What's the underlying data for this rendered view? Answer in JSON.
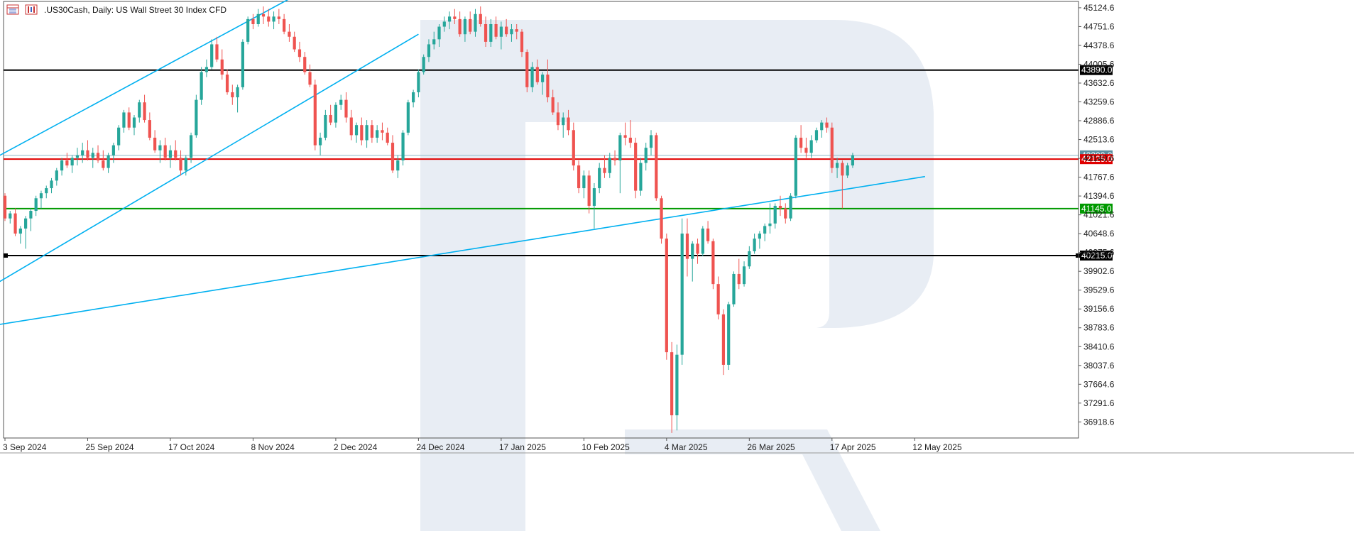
{
  "header": {
    "symbol_title": ".US30Cash, Daily:  US Wall Street 30 Index CFD",
    "icons": [
      "table-icon",
      "chart-settings-icon"
    ]
  },
  "colors": {
    "bull": "#26a69a",
    "bear": "#ef5350",
    "trend": "#00b0f0",
    "resistance": "#000000",
    "red_level": "#e00000",
    "green_level": "#009900",
    "watermark": "#e8edf4"
  },
  "chart_data": {
    "type": "candlestick",
    "title": ".US30Cash, Daily:  US Wall Street 30 Index CFD",
    "ylim": [
      36600,
      45250
    ],
    "y_ticks": [
      45124.6,
      44751.6,
      44378.6,
      44005.6,
      43632.6,
      43259.6,
      42886.6,
      42513.6,
      42140.6,
      41767.6,
      41394.6,
      41021.6,
      40648.6,
      40275.6,
      39902.6,
      39529.6,
      39156.6,
      38783.6,
      38410.6,
      38037.6,
      37664.6,
      37291.6,
      36918.6
    ],
    "x_labels": [
      {
        "label": "3 Sep 2024",
        "index": 0
      },
      {
        "label": "25 Sep 2024",
        "index": 16
      },
      {
        "label": "17 Oct 2024",
        "index": 32
      },
      {
        "label": "8 Nov 2024",
        "index": 48
      },
      {
        "label": "2 Dec 2024",
        "index": 64
      },
      {
        "label": "24 Dec 2024",
        "index": 80
      },
      {
        "label": "17 Jan 2025",
        "index": 96
      },
      {
        "label": "10 Feb 2025",
        "index": 112
      },
      {
        "label": "4 Mar 2025",
        "index": 128
      },
      {
        "label": "26 Mar 2025",
        "index": 144
      },
      {
        "label": "17 Apr 2025",
        "index": 160
      },
      {
        "label": "12 May 2025",
        "index": 176
      }
    ],
    "levels": [
      {
        "name": "resistance",
        "value": 43890.0,
        "label": "43890.0",
        "color": "#000000",
        "tag_bg": "#000000",
        "tag_fg": "#ffffff"
      },
      {
        "name": "current",
        "value": 42125.0,
        "label": "42125.0",
        "color": "#e00000",
        "tag_bg": "#e00000",
        "tag_fg": "#ffffff"
      },
      {
        "name": "support",
        "value": 41145.0,
        "label": "41145.0",
        "color": "#009900",
        "tag_bg": "#009900",
        "tag_fg": "#ffffff"
      },
      {
        "name": "lower",
        "value": 40215.0,
        "label": "40215.0",
        "color": "#000000",
        "tag_bg": "#000000",
        "tag_fg": "#ffffff"
      }
    ],
    "faint_levels": [
      {
        "value": 42200.0,
        "label": "42200.0",
        "color": "#8fb8c8"
      }
    ],
    "trendlines": [
      {
        "from": [
          -1,
          42200
        ],
        "to": [
          55,
          45300
        ]
      },
      {
        "from": [
          -1,
          39700
        ],
        "to": [
          80,
          44600
        ]
      },
      {
        "from": [
          -1,
          38850
        ],
        "to": [
          178,
          41780
        ]
      }
    ],
    "candles": [
      [
        41400,
        41450,
        40900,
        40950
      ],
      [
        40950,
        41100,
        40850,
        41050
      ],
      [
        41050,
        41150,
        40600,
        40650
      ],
      [
        40650,
        40800,
        40450,
        40750
      ],
      [
        40750,
        41000,
        40350,
        40950
      ],
      [
        40950,
        41150,
        40700,
        41100
      ],
      [
        41100,
        41400,
        41000,
        41350
      ],
      [
        41350,
        41500,
        41150,
        41450
      ],
      [
        41450,
        41600,
        41350,
        41550
      ],
      [
        41550,
        41750,
        41450,
        41700
      ],
      [
        41700,
        41950,
        41600,
        41900
      ],
      [
        41900,
        42150,
        41800,
        42100
      ],
      [
        42100,
        42250,
        41950,
        42000
      ],
      [
        42000,
        42200,
        41850,
        42150
      ],
      [
        42150,
        42350,
        42000,
        42200
      ],
      [
        42200,
        42450,
        42050,
        42300
      ],
      [
        42300,
        42500,
        42100,
        42150
      ],
      [
        42150,
        42350,
        41950,
        42250
      ],
      [
        42250,
        42400,
        42050,
        42100
      ],
      [
        42100,
        42300,
        41900,
        41950
      ],
      [
        41950,
        42250,
        41850,
        42200
      ],
      [
        42200,
        42450,
        42050,
        42400
      ],
      [
        42400,
        42800,
        42300,
        42750
      ],
      [
        42750,
        43100,
        42650,
        43050
      ],
      [
        43050,
        43150,
        42700,
        42750
      ],
      [
        42750,
        43000,
        42600,
        42950
      ],
      [
        42950,
        43300,
        42850,
        43250
      ],
      [
        43250,
        43400,
        42850,
        42900
      ],
      [
        42900,
        43050,
        42500,
        42550
      ],
      [
        42550,
        42700,
        42250,
        42300
      ],
      [
        42300,
        42500,
        42050,
        42400
      ],
      [
        42400,
        42550,
        42100,
        42150
      ],
      [
        42150,
        42400,
        41950,
        42300
      ],
      [
        42300,
        42500,
        42100,
        42150
      ],
      [
        42150,
        42300,
        41800,
        41900
      ],
      [
        41900,
        42200,
        41800,
        42150
      ],
      [
        42150,
        42650,
        42050,
        42600
      ],
      [
        42600,
        43400,
        42550,
        43300
      ],
      [
        43300,
        43950,
        43200,
        43850
      ],
      [
        43850,
        44100,
        43750,
        43950
      ],
      [
        43950,
        44500,
        43900,
        44400
      ],
      [
        44400,
        44550,
        44050,
        44100
      ],
      [
        44100,
        44300,
        43700,
        43800
      ],
      [
        43800,
        43900,
        43400,
        43450
      ],
      [
        43450,
        43600,
        43200,
        43350
      ],
      [
        43350,
        43600,
        43050,
        43550
      ],
      [
        43550,
        44500,
        43500,
        44450
      ],
      [
        44450,
        44950,
        44400,
        44900
      ],
      [
        44900,
        45000,
        44700,
        44800
      ],
      [
        44800,
        45100,
        44750,
        45000
      ],
      [
        45000,
        45150,
        44800,
        44950
      ],
      [
        44950,
        45100,
        44750,
        44850
      ],
      [
        44850,
        45050,
        44700,
        44950
      ],
      [
        44950,
        45100,
        44800,
        44900
      ],
      [
        44900,
        45000,
        44600,
        44650
      ],
      [
        44650,
        44800,
        44450,
        44550
      ],
      [
        44550,
        44650,
        44250,
        44300
      ],
      [
        44300,
        44450,
        44050,
        44150
      ],
      [
        44150,
        44250,
        43800,
        43850
      ],
      [
        43850,
        44000,
        43550,
        43600
      ],
      [
        43600,
        43700,
        42300,
        42400
      ],
      [
        42400,
        42650,
        42200,
        42550
      ],
      [
        42550,
        43100,
        42500,
        43000
      ],
      [
        43000,
        43200,
        42800,
        42850
      ],
      [
        42850,
        43250,
        42750,
        43200
      ],
      [
        43200,
        43400,
        43100,
        43300
      ],
      [
        43300,
        43450,
        42850,
        42950
      ],
      [
        42950,
        43100,
        42500,
        42600
      ],
      [
        42600,
        42850,
        42450,
        42800
      ],
      [
        42800,
        42950,
        42400,
        42500
      ],
      [
        42500,
        42900,
        42350,
        42800
      ],
      [
        42800,
        42900,
        42450,
        42550
      ],
      [
        42550,
        42800,
        42450,
        42700
      ],
      [
        42700,
        42850,
        42500,
        42650
      ],
      [
        42650,
        42750,
        42400,
        42450
      ],
      [
        42450,
        42600,
        41850,
        41900
      ],
      [
        41900,
        42200,
        41750,
        42100
      ],
      [
        42100,
        42700,
        42000,
        42650
      ],
      [
        42650,
        43300,
        42600,
        43250
      ],
      [
        43250,
        43500,
        43150,
        43450
      ],
      [
        43450,
        43900,
        43350,
        43850
      ],
      [
        43850,
        44200,
        43800,
        44150
      ],
      [
        44150,
        44500,
        44050,
        44400
      ],
      [
        44400,
        44650,
        44300,
        44500
      ],
      [
        44500,
        44800,
        44350,
        44750
      ],
      [
        44750,
        44950,
        44650,
        44850
      ],
      [
        44850,
        45050,
        44700,
        44950
      ],
      [
        44950,
        45100,
        44800,
        44900
      ],
      [
        44900,
        45050,
        44550,
        44600
      ],
      [
        44600,
        44950,
        44450,
        44900
      ],
      [
        44900,
        45050,
        44600,
        44650
      ],
      [
        44650,
        45100,
        44550,
        45000
      ],
      [
        45000,
        45150,
        44750,
        44800
      ],
      [
        44800,
        44950,
        44350,
        44450
      ],
      [
        44450,
        44900,
        44350,
        44800
      ],
      [
        44800,
        44950,
        44500,
        44550
      ],
      [
        44550,
        44850,
        44300,
        44750
      ],
      [
        44750,
        44900,
        44550,
        44600
      ],
      [
        44600,
        44800,
        44450,
        44700
      ],
      [
        44700,
        44800,
        44500,
        44650
      ],
      [
        44650,
        44700,
        44150,
        44250
      ],
      [
        44250,
        44300,
        43450,
        43550
      ],
      [
        43550,
        44050,
        43450,
        43950
      ],
      [
        43950,
        44100,
        43600,
        43650
      ],
      [
        43650,
        43850,
        43400,
        43800
      ],
      [
        43800,
        44100,
        43250,
        43350
      ],
      [
        43350,
        43500,
        43000,
        43050
      ],
      [
        43050,
        43250,
        42700,
        42800
      ],
      [
        42800,
        43050,
        42550,
        42950
      ],
      [
        42950,
        43100,
        42600,
        42700
      ],
      [
        42700,
        42850,
        41900,
        42000
      ],
      [
        42000,
        42100,
        41450,
        41550
      ],
      [
        41550,
        41900,
        41350,
        41800
      ],
      [
        41800,
        41900,
        41050,
        41200
      ],
      [
        41200,
        41650,
        40750,
        41550
      ],
      [
        41550,
        42050,
        41450,
        41950
      ],
      [
        41950,
        42200,
        41750,
        41850
      ],
      [
        41850,
        42250,
        41750,
        42150
      ],
      [
        42150,
        42300,
        42000,
        42100
      ],
      [
        42100,
        42650,
        41450,
        42600
      ],
      [
        42600,
        42850,
        42400,
        42550
      ],
      [
        42550,
        42900,
        42350,
        42450
      ],
      [
        42450,
        42550,
        41350,
        41500
      ],
      [
        41500,
        42150,
        41400,
        42050
      ],
      [
        42050,
        42450,
        41900,
        42350
      ],
      [
        42350,
        42700,
        42200,
        42600
      ],
      [
        42600,
        42650,
        41300,
        41350
      ],
      [
        41350,
        41400,
        40450,
        40550
      ],
      [
        40550,
        40650,
        38150,
        38300
      ],
      [
        38300,
        38500,
        36700,
        37050
      ],
      [
        37050,
        38450,
        36750,
        38250
      ],
      [
        38250,
        40950,
        38050,
        40650
      ],
      [
        40650,
        40950,
        39800,
        40150
      ],
      [
        40150,
        40500,
        39700,
        40450
      ],
      [
        40450,
        40550,
        40050,
        40250
      ],
      [
        40250,
        40800,
        40200,
        40750
      ],
      [
        40750,
        40900,
        40450,
        40500
      ],
      [
        40500,
        40550,
        39550,
        39650
      ],
      [
        39650,
        39800,
        38950,
        39050
      ],
      [
        39050,
        39150,
        37850,
        38050
      ],
      [
        38050,
        39300,
        37950,
        39250
      ],
      [
        39250,
        39900,
        39200,
        39850
      ],
      [
        39850,
        40150,
        39550,
        39650
      ],
      [
        39650,
        40100,
        39600,
        40000
      ],
      [
        40000,
        40400,
        39950,
        40300
      ],
      [
        40300,
        40650,
        40250,
        40550
      ],
      [
        40550,
        40700,
        40350,
        40650
      ],
      [
        40650,
        40850,
        40500,
        40800
      ],
      [
        40800,
        41250,
        40650,
        40850
      ],
      [
        40850,
        41250,
        40750,
        41200
      ],
      [
        41200,
        41400,
        41000,
        41150
      ],
      [
        41150,
        41250,
        40850,
        40950
      ],
      [
        40950,
        41450,
        40900,
        41400
      ],
      [
        41400,
        42600,
        41350,
        42550
      ],
      [
        42550,
        42800,
        42250,
        42350
      ],
      [
        42350,
        42550,
        42150,
        42250
      ],
      [
        42250,
        42600,
        42150,
        42500
      ],
      [
        42500,
        42750,
        42450,
        42700
      ],
      [
        42700,
        42900,
        42550,
        42850
      ],
      [
        42850,
        42950,
        42650,
        42750
      ],
      [
        42750,
        42850,
        41850,
        41950
      ],
      [
        41950,
        42150,
        41750,
        42050
      ],
      [
        42050,
        42100,
        41150,
        41800
      ],
      [
        41800,
        42050,
        41750,
        42000
      ],
      [
        42000,
        42250,
        41950,
        42200
      ]
    ]
  }
}
